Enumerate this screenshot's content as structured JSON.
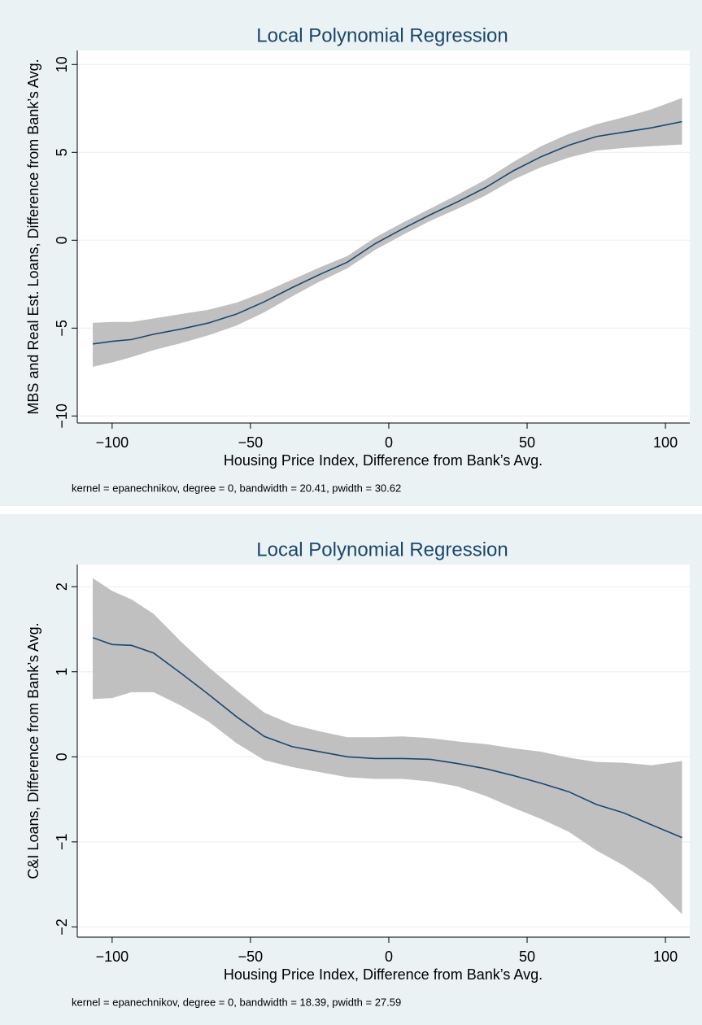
{
  "chart_data": [
    {
      "type": "lpoly",
      "title": "Local Polynomial Regression",
      "x_label": "Housing Price Index, Difference from Bank’s Avg.",
      "y_label": "MBS and Real Est. Loans, Difference from Bank’s Avg.",
      "note": "kernel = epanechnikov, degree = 0, bandwidth = 20.41, pwidth = 30.62",
      "x": [
        -107,
        -100,
        -93,
        -85,
        -75,
        -65,
        -55,
        -45,
        -35,
        -25,
        -15,
        -5,
        5,
        15,
        25,
        35,
        45,
        55,
        65,
        75,
        85,
        95,
        106
      ],
      "fit": [
        -5.9,
        -5.75,
        -5.65,
        -5.35,
        -5.05,
        -4.7,
        -4.2,
        -3.5,
        -2.7,
        -1.95,
        -1.25,
        -0.2,
        0.65,
        1.45,
        2.2,
        3.0,
        3.95,
        4.75,
        5.4,
        5.9,
        6.15,
        6.4,
        6.75
      ],
      "ci_upper": [
        -4.7,
        -4.65,
        -4.65,
        -4.45,
        -4.2,
        -3.95,
        -3.55,
        -2.95,
        -2.25,
        -1.55,
        -0.9,
        0.15,
        1.0,
        1.8,
        2.6,
        3.45,
        4.45,
        5.35,
        6.05,
        6.6,
        7.0,
        7.45,
        8.1
      ],
      "ci_lower": [
        -7.2,
        -6.95,
        -6.65,
        -6.25,
        -5.85,
        -5.4,
        -4.85,
        -4.1,
        -3.2,
        -2.35,
        -1.6,
        -0.55,
        0.3,
        1.1,
        1.8,
        2.55,
        3.45,
        4.15,
        4.7,
        5.1,
        5.25,
        5.35,
        5.45
      ],
      "line_color": "#1a476f",
      "band_color": "#c0c0c0",
      "xlim": [
        -112.6,
        108.8
      ],
      "ylim": [
        -10.4,
        10.8
      ],
      "xticks": [
        {
          "value": -100,
          "label": "−100"
        },
        {
          "value": -50,
          "label": "−50"
        },
        0,
        50,
        100
      ],
      "yticks": [
        {
          "value": -10,
          "label": "−10"
        },
        {
          "value": -5,
          "label": "−5"
        },
        0,
        5,
        10
      ],
      "grid": true
    },
    {
      "type": "lpoly",
      "title": "Local Polynomial Regression",
      "x_label": "Housing Price Index, Difference from Bank’s Avg.",
      "y_label": "C&I Loans, Difference from Bank’s Avg.",
      "note": "kernel = epanechnikov, degree = 0, bandwidth = 18.39, pwidth = 27.59",
      "x": [
        -107,
        -100,
        -93,
        -85,
        -75,
        -65,
        -55,
        -45,
        -35,
        -25,
        -15,
        -5,
        5,
        15,
        25,
        35,
        45,
        55,
        65,
        75,
        85,
        95,
        106
      ],
      "fit": [
        1.4,
        1.32,
        1.31,
        1.22,
        0.98,
        0.73,
        0.47,
        0.24,
        0.12,
        0.06,
        0.0,
        -0.02,
        -0.02,
        -0.03,
        -0.08,
        -0.14,
        -0.22,
        -0.31,
        -0.41,
        -0.56,
        -0.66,
        -0.8,
        -0.95
      ],
      "ci_upper": [
        2.1,
        1.95,
        1.85,
        1.68,
        1.35,
        1.05,
        0.78,
        0.52,
        0.38,
        0.3,
        0.23,
        0.23,
        0.24,
        0.22,
        0.18,
        0.15,
        0.1,
        0.06,
        -0.01,
        -0.06,
        -0.07,
        -0.1,
        -0.05
      ],
      "ci_lower": [
        0.68,
        0.69,
        0.76,
        0.76,
        0.6,
        0.41,
        0.16,
        -0.04,
        -0.12,
        -0.18,
        -0.24,
        -0.26,
        -0.26,
        -0.29,
        -0.35,
        -0.46,
        -0.6,
        -0.73,
        -0.88,
        -1.1,
        -1.28,
        -1.5,
        -1.85
      ],
      "line_color": "#1a476f",
      "band_color": "#c0c0c0",
      "xlim": [
        -112.6,
        108.8
      ],
      "ylim": [
        -2.12,
        2.26
      ],
      "xticks": [
        {
          "value": -100,
          "label": "−100"
        },
        {
          "value": -50,
          "label": "−50"
        },
        0,
        50,
        100
      ],
      "yticks": [
        {
          "value": -2,
          "label": "−2"
        },
        {
          "value": -1,
          "label": "−1"
        },
        0,
        1,
        2
      ],
      "grid": true
    }
  ]
}
